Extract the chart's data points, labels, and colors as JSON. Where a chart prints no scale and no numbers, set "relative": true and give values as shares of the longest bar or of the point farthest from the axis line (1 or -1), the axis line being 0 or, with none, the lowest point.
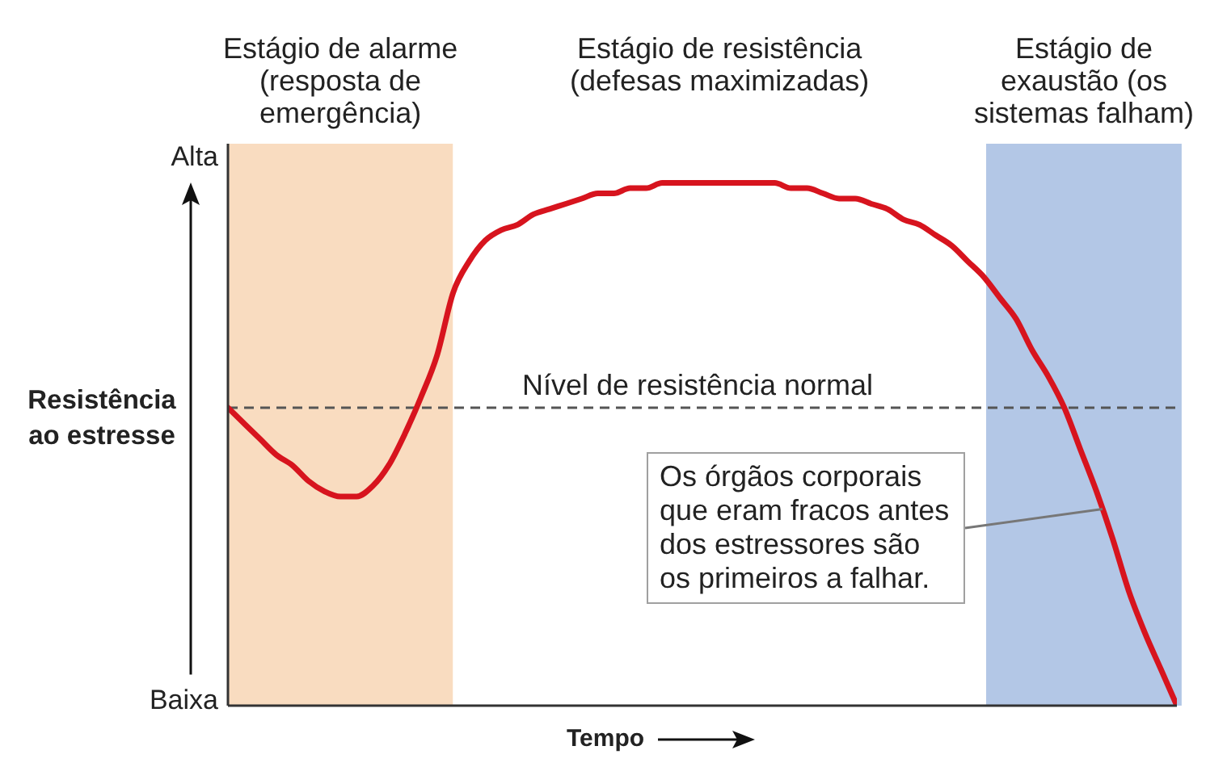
{
  "chart_data": {
    "type": "line",
    "relative": true,
    "xlabel": "Tempo",
    "ylabel": "Resistência ao estresse",
    "categories": [
      null,
      null,
      null,
      null,
      null,
      null,
      null,
      null,
      null,
      null,
      null,
      null,
      null,
      null,
      null,
      null,
      null,
      null,
      null,
      null,
      null,
      null,
      null,
      null,
      null,
      null,
      null,
      null,
      null,
      null,
      null,
      null,
      null,
      null,
      null,
      null,
      null,
      null,
      null,
      null,
      null,
      null,
      null,
      null,
      null,
      null,
      null,
      null,
      null,
      null,
      null,
      null,
      null,
      null,
      null,
      null,
      null,
      null,
      null,
      null
    ],
    "series": [
      {
        "color": "#d7141e",
        "values": [
          0.57,
          0.54,
          0.51,
          0.48,
          0.46,
          0.43,
          0.41,
          0.4,
          0.4,
          0.42,
          0.46,
          0.52,
          0.59,
          0.67,
          0.79,
          0.85,
          0.89,
          0.91,
          0.92,
          0.94,
          0.95,
          0.96,
          0.97,
          0.98,
          0.98,
          0.99,
          0.99,
          1.0,
          1.0,
          1.0,
          1.0,
          1.0,
          1.0,
          1.0,
          1.0,
          0.99,
          0.99,
          0.98,
          0.97,
          0.97,
          0.96,
          0.95,
          0.93,
          0.92,
          0.9,
          0.88,
          0.85,
          0.82,
          0.78,
          0.74,
          0.68,
          0.63,
          0.57,
          0.49,
          0.41,
          0.32,
          0.22,
          0.14,
          0.07,
          0
        ]
      }
    ],
    "ref_lines": [
      {
        "axis": "y",
        "value": 0.57,
        "label": "Nível de resistência normal",
        "color": "#555555",
        "line_style": "dashed"
      }
    ],
    "annotations": [
      "Estágio de alarme (resposta de emergência)",
      "Estágio de resistência (defesas maximizadas)",
      "Estágio de exaustão (os sistemas falham)",
      "Alta",
      "Os órgãos corporais que eram fracos antes dos estressores são os primeiros a falhar.",
      "Baixa"
    ]
  }
}
